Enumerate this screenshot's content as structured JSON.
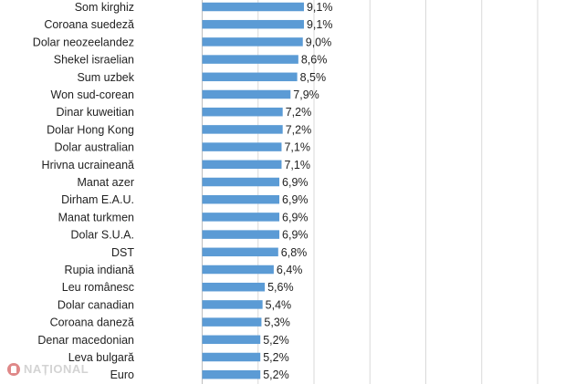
{
  "chart_data": {
    "type": "bar",
    "orientation": "horizontal",
    "categories": [
      "Som kirghiz",
      "Coroana suedeză",
      "Dolar neozeelandez",
      "Shekel israelian",
      "Sum uzbek",
      "Won sud-corean",
      "Dinar kuweitian",
      "Dolar Hong Kong",
      "Dolar australian",
      "Hrivna ucraineană",
      "Manat azer",
      "Dirham E.A.U.",
      "Manat turkmen",
      "Dolar S.U.A.",
      "DST",
      "Rupia indiană",
      "Leu românesc",
      "Dolar canadian",
      "Coroana daneză",
      "Denar macedonian",
      "Leva bulgară",
      "Euro"
    ],
    "values": [
      9.1,
      9.1,
      9.0,
      8.6,
      8.5,
      7.9,
      7.2,
      7.2,
      7.1,
      7.1,
      6.9,
      6.9,
      6.9,
      6.9,
      6.8,
      6.4,
      5.6,
      5.4,
      5.3,
      5.2,
      5.2,
      5.2
    ],
    "labels": [
      "9,1%",
      "9,1%",
      "9,0%",
      "8,6%",
      "8,5%",
      "7,9%",
      "7,2%",
      "7,2%",
      "7,1%",
      "7,1%",
      "6,9%",
      "6,9%",
      "6,9%",
      "6,9%",
      "6,8%",
      "6,4%",
      "5,6%",
      "5,4%",
      "5,3%",
      "5,2%",
      "5,2%",
      "5,2%"
    ],
    "bar_color": "#5b9bd5",
    "grid": true,
    "xlim": [
      0,
      30
    ]
  },
  "watermark": {
    "text": "NAȚIONAL",
    "icon": "national-logo-icon",
    "icon_color": "#c62828"
  }
}
